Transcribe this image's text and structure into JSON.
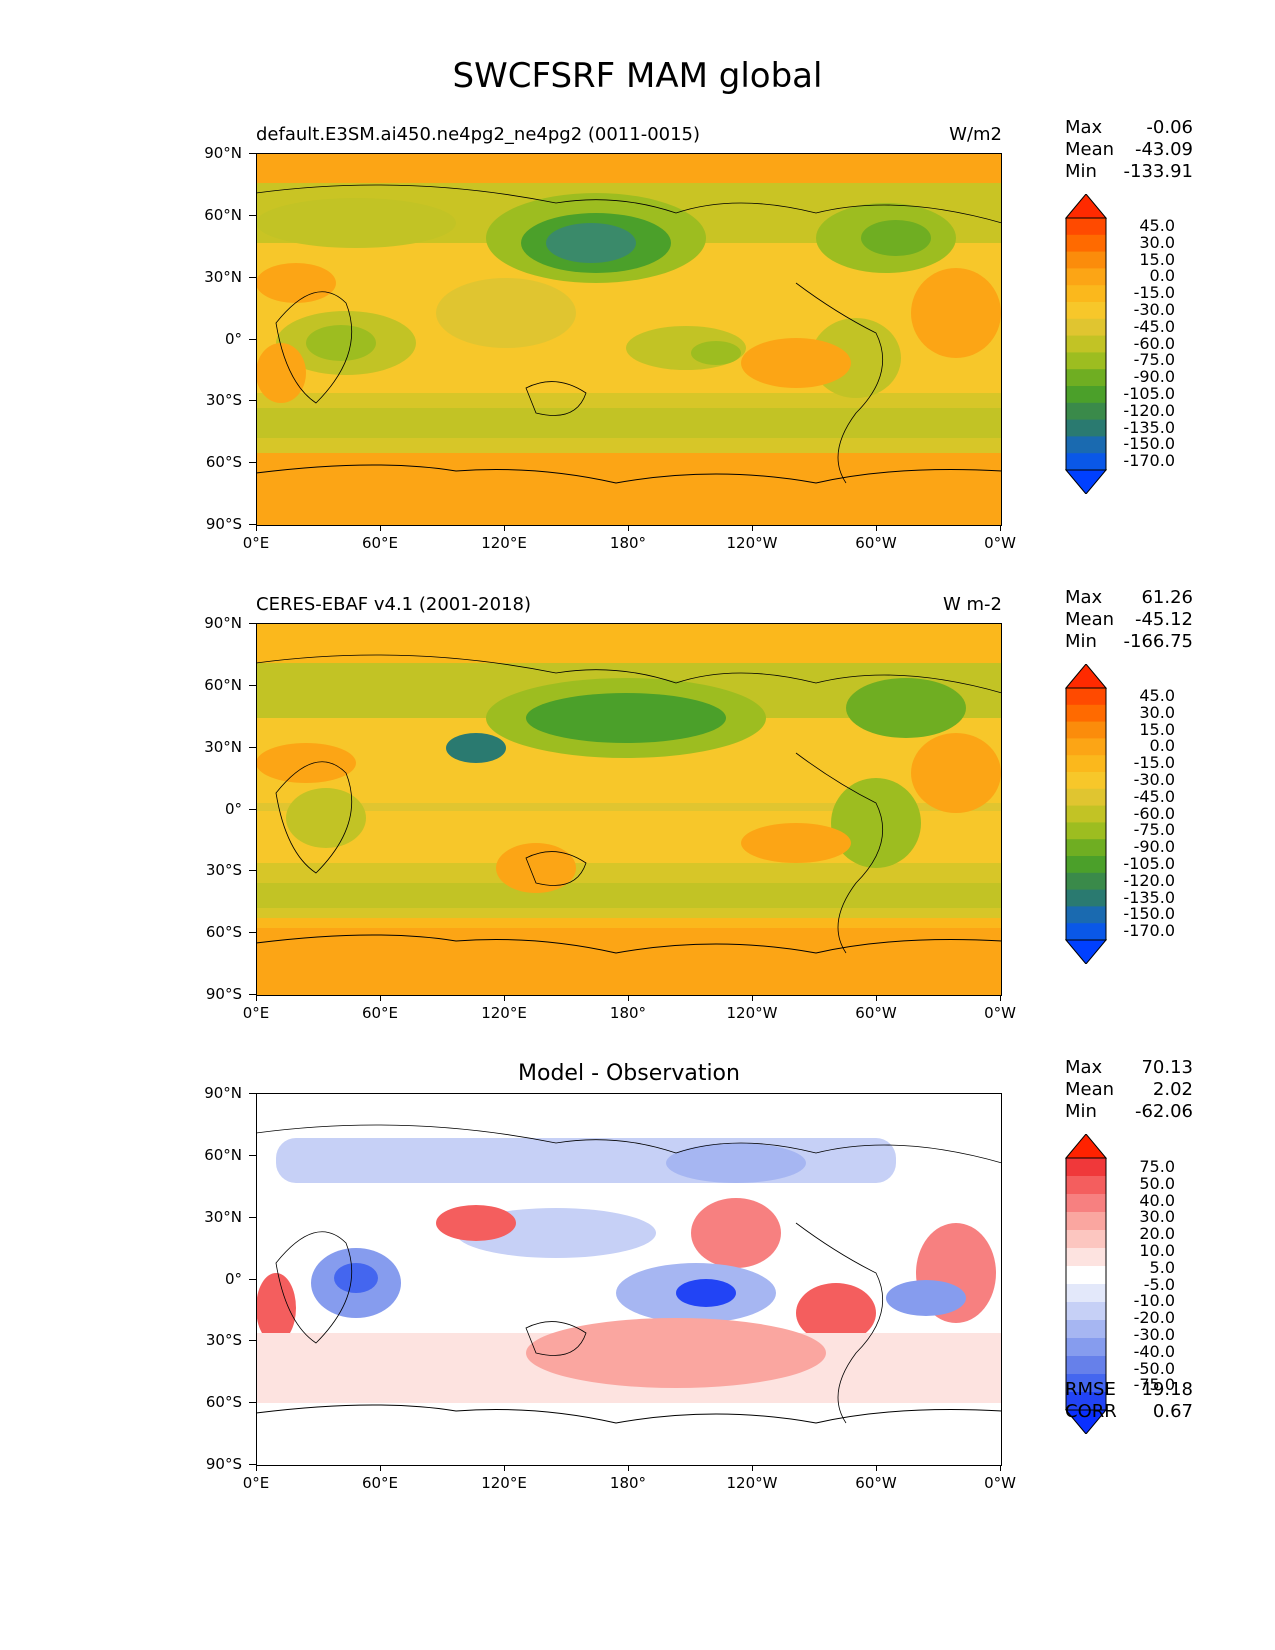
{
  "figure": {
    "title": "SWCFSRF MAM global"
  },
  "lat_ticks": [
    "90°N",
    "60°N",
    "30°N",
    "0°",
    "30°S",
    "60°S",
    "90°S"
  ],
  "lon_ticks": [
    "0°E",
    "60°E",
    "120°E",
    "180°",
    "120°W",
    "60°W",
    "0°W"
  ],
  "panels": [
    {
      "title_left": "default.E3SM.ai450.ne4pg2_ne4pg2 (0011-0015)",
      "title_right": "W/m2",
      "title_center": "",
      "stats": {
        "max_label": "Max",
        "max": "-0.06",
        "mean_label": "Mean",
        "mean": "-43.09",
        "min_label": "Min",
        "min": "-133.91"
      },
      "colorbar_labels": [
        "45.0",
        "30.0",
        "15.0",
        "0.0",
        "-15.0",
        "-30.0",
        "-45.0",
        "-60.0",
        "-75.0",
        "-90.0",
        "-105.0",
        "-120.0",
        "-135.0",
        "-150.0",
        "-170.0"
      ],
      "colorbar_colors": [
        "#ff2a00",
        "#ff4a00",
        "#ff6a00",
        "#fb8c0b",
        "#fca515",
        "#fbb81c",
        "#f7c72a",
        "#e0c530",
        "#c2c325",
        "#9dbd20",
        "#6fae22",
        "#4ba02a",
        "#3a8a4a",
        "#2a7a70",
        "#1a6ab0",
        "#0a58e8",
        "#0040ff"
      ]
    },
    {
      "title_left": "CERES-EBAF v4.1 (2001-2018)",
      "title_right": "W m-2",
      "title_center": "",
      "stats": {
        "max_label": "Max",
        "max": "61.26",
        "mean_label": "Mean",
        "mean": "-45.12",
        "min_label": "Min",
        "min": "-166.75"
      },
      "colorbar_labels": [
        "45.0",
        "30.0",
        "15.0",
        "0.0",
        "-15.0",
        "-30.0",
        "-45.0",
        "-60.0",
        "-75.0",
        "-90.0",
        "-105.0",
        "-120.0",
        "-135.0",
        "-150.0",
        "-170.0"
      ],
      "colorbar_colors": [
        "#ff2a00",
        "#ff4a00",
        "#ff6a00",
        "#fb8c0b",
        "#fca515",
        "#fbb81c",
        "#f7c72a",
        "#e0c530",
        "#c2c325",
        "#9dbd20",
        "#6fae22",
        "#4ba02a",
        "#3a8a4a",
        "#2a7a70",
        "#1a6ab0",
        "#0a58e8",
        "#0040ff"
      ]
    },
    {
      "title_left": "",
      "title_right": "",
      "title_center": "Model - Observation",
      "stats": {
        "max_label": "Max",
        "max": "70.13",
        "mean_label": "Mean",
        "mean": "2.02",
        "min_label": "Min",
        "min": "-62.06"
      },
      "colorbar_labels": [
        "75.0",
        "50.0",
        "40.0",
        "30.0",
        "20.0",
        "10.0",
        "5.0",
        "-5.0",
        "-10.0",
        "-20.0",
        "-30.0",
        "-40.0",
        "-50.0",
        "-75.0"
      ],
      "colorbar_colors": [
        "#ff2200",
        "#f0383a",
        "#f45e5e",
        "#f78080",
        "#faa6a0",
        "#fcc6c0",
        "#fde3e0",
        "#ffffff",
        "#e3e8fa",
        "#c6d0f6",
        "#a6b6f2",
        "#869cee",
        "#6680ea",
        "#4466ef",
        "#2244f5",
        "#0a30ff"
      ],
      "metrics": {
        "rmse_label": "RMSE",
        "rmse": "19.18",
        "corr_label": "CORR",
        "corr": "0.67"
      }
    }
  ]
}
